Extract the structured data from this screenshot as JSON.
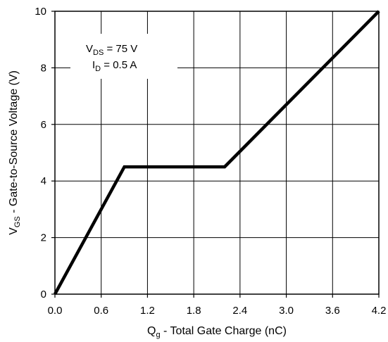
{
  "chart_data": {
    "type": "line",
    "x": [
      0.0,
      0.9,
      2.2,
      4.2
    ],
    "series": [
      {
        "values": [
          0,
          4.5,
          4.5,
          10
        ]
      }
    ],
    "xlim": [
      0.0,
      4.2
    ],
    "ylim": [
      0,
      10
    ],
    "x_ticks": [
      0.0,
      0.6,
      1.2,
      1.8,
      2.4,
      3.0,
      3.6,
      4.2
    ],
    "x_tick_labels": [
      "0.0",
      "0.6",
      "1.2",
      "1.8",
      "2.4",
      "3.0",
      "3.6",
      "4.2"
    ],
    "y_ticks": [
      0,
      2,
      4,
      6,
      8,
      10
    ],
    "y_tick_labels": [
      "0",
      "2",
      "4",
      "6",
      "8",
      "10"
    ],
    "grid": true,
    "xlabel": {
      "main": "Q",
      "sub": "g",
      "rest": " - Total Gate Charge (nC)"
    },
    "ylabel": {
      "main": "V",
      "sub": "GS",
      "rest": " - Gate-to-Source Voltage (V)"
    },
    "annotations": [
      {
        "main": "V",
        "sub": "DS",
        "rest": " = 75  V"
      },
      {
        "main": "I",
        "sub": "D",
        "rest": " = 0.5 A"
      }
    ],
    "colors": {
      "line": "#000000",
      "grid": "#000000",
      "frame": "#000000"
    }
  }
}
